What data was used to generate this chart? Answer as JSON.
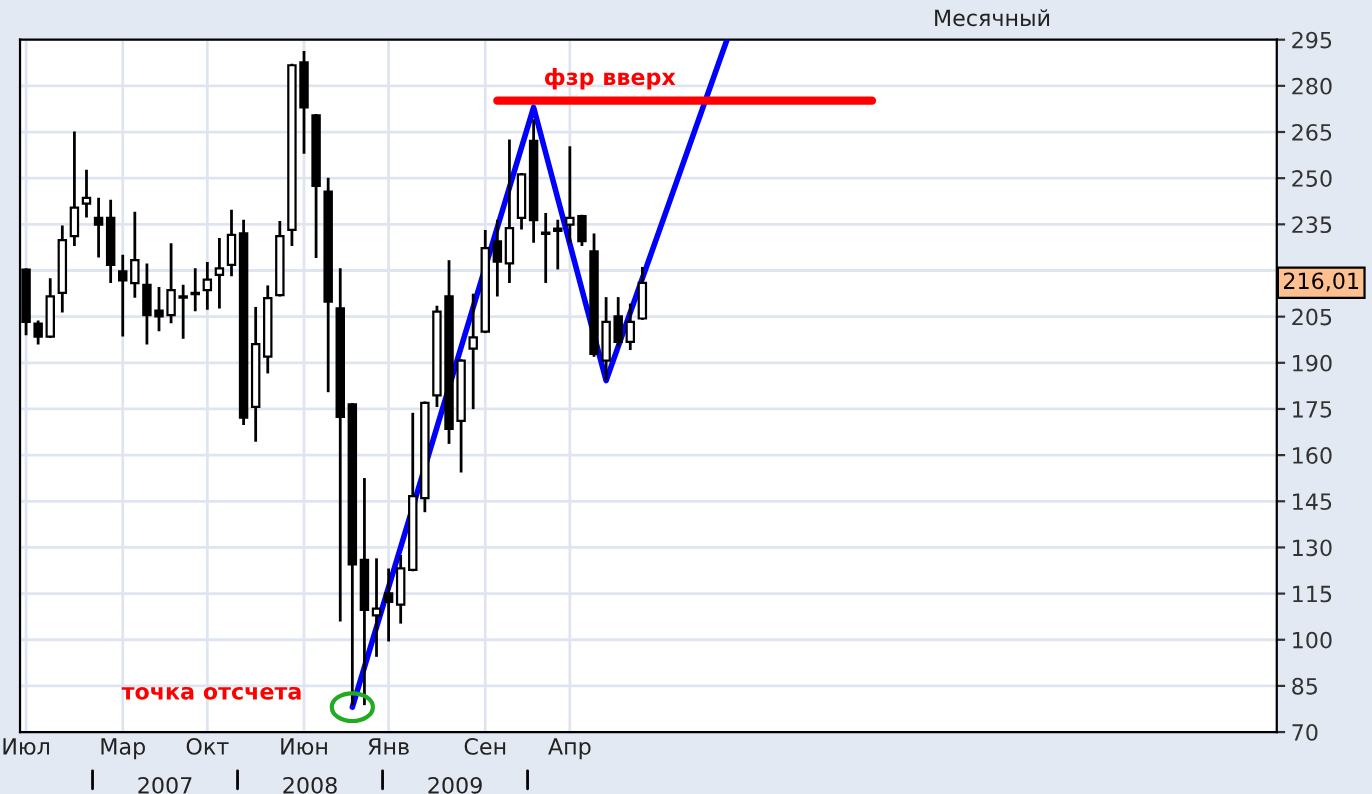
{
  "chart_data": {
    "type": "candlestick",
    "title": "Месячный",
    "categories": [
      "Июл",
      null,
      null,
      null,
      null,
      null,
      null,
      null,
      "Мар",
      null,
      null,
      null,
      null,
      null,
      null,
      "Окт",
      null,
      null,
      null,
      null,
      null,
      null,
      null,
      "Июн",
      null,
      null,
      null,
      null,
      null,
      null,
      "Янв",
      null,
      null,
      null,
      null,
      null,
      null,
      null,
      "Сен",
      null,
      null,
      null,
      null,
      null,
      null,
      "Апр",
      null,
      null,
      null,
      null,
      null,
      null,
      null,
      null,
      null,
      null,
      null,
      null,
      null,
      null,
      null,
      null,
      null,
      null,
      null,
      null,
      null,
      null,
      null,
      null,
      null,
      null,
      null,
      null,
      null,
      null,
      null,
      null,
      null,
      null,
      null,
      null,
      null,
      null,
      null,
      null,
      null,
      null,
      null,
      null,
      null,
      null,
      null,
      null,
      null,
      null,
      null,
      null,
      null,
      null,
      null,
      null,
      null,
      null
    ],
    "ohlc": [
      [
        220.3,
        220.3,
        199.4,
        203.3
      ],
      [
        202.7,
        203.3,
        196.4,
        198.5
      ],
      [
        198.5,
        217.0,
        198.5,
        211.6
      ],
      [
        212.7,
        234.2,
        206.8,
        229.9
      ],
      [
        231.2,
        264.7,
        228.4,
        240.4
      ],
      [
        241.7,
        252.3,
        237.7,
        243.6
      ],
      [
        237.1,
        243.2,
        224.7,
        234.9
      ],
      [
        237.1,
        242.5,
        216.4,
        221.8
      ],
      [
        219.7,
        224.7,
        199.0,
        216.8
      ],
      [
        215.9,
        238.6,
        211.6,
        223.4
      ],
      [
        215.3,
        221.8,
        196.4,
        205.5
      ],
      [
        207.0,
        214.2,
        200.7,
        205.1
      ],
      [
        205.5,
        228.4,
        203.3,
        213.6
      ],
      [
        211.2,
        214.9,
        198.3,
        211.6
      ],
      [
        212.3,
        220.3,
        207.2,
        212.7
      ],
      [
        213.6,
        222.3,
        207.7,
        217.0
      ],
      [
        218.6,
        230.1,
        208.1,
        220.7
      ],
      [
        221.8,
        239.3,
        218.6,
        231.6
      ],
      [
        232.1,
        236.0,
        170.2,
        172.2
      ],
      [
        175.7,
        207.7,
        164.8,
        196.1
      ],
      [
        192.0,
        214.7,
        187.0,
        211.0
      ],
      [
        212.0,
        235.6,
        212.0,
        231.2
      ],
      [
        233.2,
        286.7,
        228.4,
        286.7
      ],
      [
        287.6,
        290.9,
        258.4,
        273.0
      ],
      [
        270.4,
        270.4,
        224.5,
        247.5
      ],
      [
        245.6,
        249.7,
        180.9,
        209.9
      ],
      [
        207.7,
        220.3,
        106.4,
        172.4
      ],
      [
        176.5,
        176.5,
        79.2,
        124.5
      ],
      [
        126.0,
        152.1,
        79.2,
        109.7
      ],
      [
        107.9,
        126.0,
        94.9,
        110.1
      ],
      [
        115.1,
        122.7,
        99.9,
        112.3
      ],
      [
        111.4,
        127.1,
        105.7,
        123.2
      ],
      [
        122.7,
        173.3,
        122.7,
        146.7
      ],
      [
        146.0,
        177.0,
        141.9,
        177.0
      ],
      [
        179.4,
        208.1,
        176.1,
        206.6
      ],
      [
        211.6,
        222.9,
        164.1,
        168.5
      ],
      [
        171.1,
        190.7,
        154.8,
        190.7
      ],
      [
        194.6,
        212.0,
        175.4,
        198.3
      ],
      [
        200.1,
        232.7,
        200.1,
        227.3
      ],
      [
        229.5,
        236.0,
        212.0,
        222.9
      ],
      [
        222.3,
        262.1,
        216.4,
        233.8
      ],
      [
        237.1,
        251.2,
        233.8,
        251.2
      ],
      [
        262.1,
        268.7,
        229.5,
        236.4
      ],
      [
        232.3,
        238.2,
        216.4,
        231.9
      ],
      [
        232.9,
        236.0,
        220.8,
        233.6
      ],
      [
        234.9,
        259.9,
        229.5,
        237.1
      ],
      [
        237.7,
        237.7,
        228.4,
        229.5
      ],
      [
        226.2,
        231.6,
        192.4,
        192.9
      ],
      [
        190.7,
        210.9,
        184.8,
        203.3
      ],
      [
        205.1,
        210.9,
        195.7,
        196.8
      ],
      [
        196.8,
        208.8,
        194.6,
        203.3
      ],
      [
        204.4,
        220.7,
        204.4,
        216.01
      ],
      null,
      null,
      null,
      null,
      null,
      null,
      null,
      null,
      null,
      null,
      null,
      null,
      null,
      null,
      null,
      null,
      null,
      null,
      null,
      null,
      null,
      null,
      null,
      null,
      null,
      null,
      null,
      null,
      null,
      null,
      null,
      null,
      null,
      null,
      null,
      null,
      null,
      null,
      null,
      null,
      null,
      null,
      null,
      null,
      null,
      null,
      null,
      null,
      null,
      null,
      null,
      null
    ],
    "color": "#000000",
    "series": [
      {
        "type": "line",
        "color": "#0000ff",
        "values": [
          null,
          null,
          null,
          null,
          null,
          null,
          null,
          null,
          null,
          null,
          null,
          null,
          null,
          null,
          null,
          null,
          null,
          null,
          null,
          null,
          null,
          null,
          null,
          null,
          null,
          null,
          null,
          78.1,
          null,
          null,
          null,
          null,
          null,
          null,
          null,
          null,
          null,
          null,
          null,
          null,
          null,
          null,
          273.0,
          null,
          null,
          null,
          null,
          null,
          184.2,
          null,
          null,
          null,
          null,
          null,
          null,
          null,
          null,
          null,
          295.0,
          null,
          null,
          null,
          null,
          null,
          null,
          null,
          null,
          null,
          null,
          null,
          null,
          null,
          null,
          null,
          null,
          null,
          null,
          null,
          null,
          null,
          null,
          null,
          null,
          null,
          null,
          null,
          null,
          null,
          null,
          null,
          null,
          null,
          null,
          null,
          null,
          null,
          null,
          null,
          null,
          null,
          null,
          null,
          null,
          null
        ]
      },
      {
        "type": "line",
        "color": "#ff0000",
        "values": [
          null,
          null,
          null,
          null,
          null,
          null,
          null,
          null,
          null,
          null,
          null,
          null,
          null,
          null,
          null,
          null,
          null,
          null,
          null,
          null,
          null,
          null,
          null,
          null,
          null,
          null,
          null,
          null,
          null,
          null,
          null,
          null,
          null,
          null,
          null,
          null,
          null,
          null,
          null,
          275.2,
          null,
          null,
          null,
          null,
          null,
          null,
          null,
          null,
          null,
          null,
          null,
          null,
          null,
          null,
          null,
          null,
          null,
          null,
          null,
          null,
          null,
          null,
          null,
          null,
          null,
          null,
          null,
          null,
          null,
          null,
          275.2,
          null,
          null,
          null,
          null,
          null,
          null,
          null,
          null,
          null,
          null,
          null,
          null,
          null,
          null,
          null,
          null,
          null,
          null,
          null,
          null,
          null,
          null,
          null,
          null,
          null,
          null,
          null,
          null,
          null,
          null,
          null,
          null,
          null
        ]
      }
    ],
    "ylim": [
      70,
      295
    ],
    "yticks": [
      70,
      85,
      100,
      115,
      130,
      145,
      160,
      175,
      190,
      205,
      {
        "value": 220,
        "label": null
      },
      235,
      250,
      265,
      280,
      295
    ],
    "annotations": [
      "точка отсчета",
      {
        "text": "фзр вверх",
        "y": 275.2
      },
      {
        "text": "216,01",
        "y": 216.01
      },
      "2007",
      "2008",
      "2009"
    ],
    "grid": true,
    "marker": "none",
    "line_style": "solid"
  }
}
